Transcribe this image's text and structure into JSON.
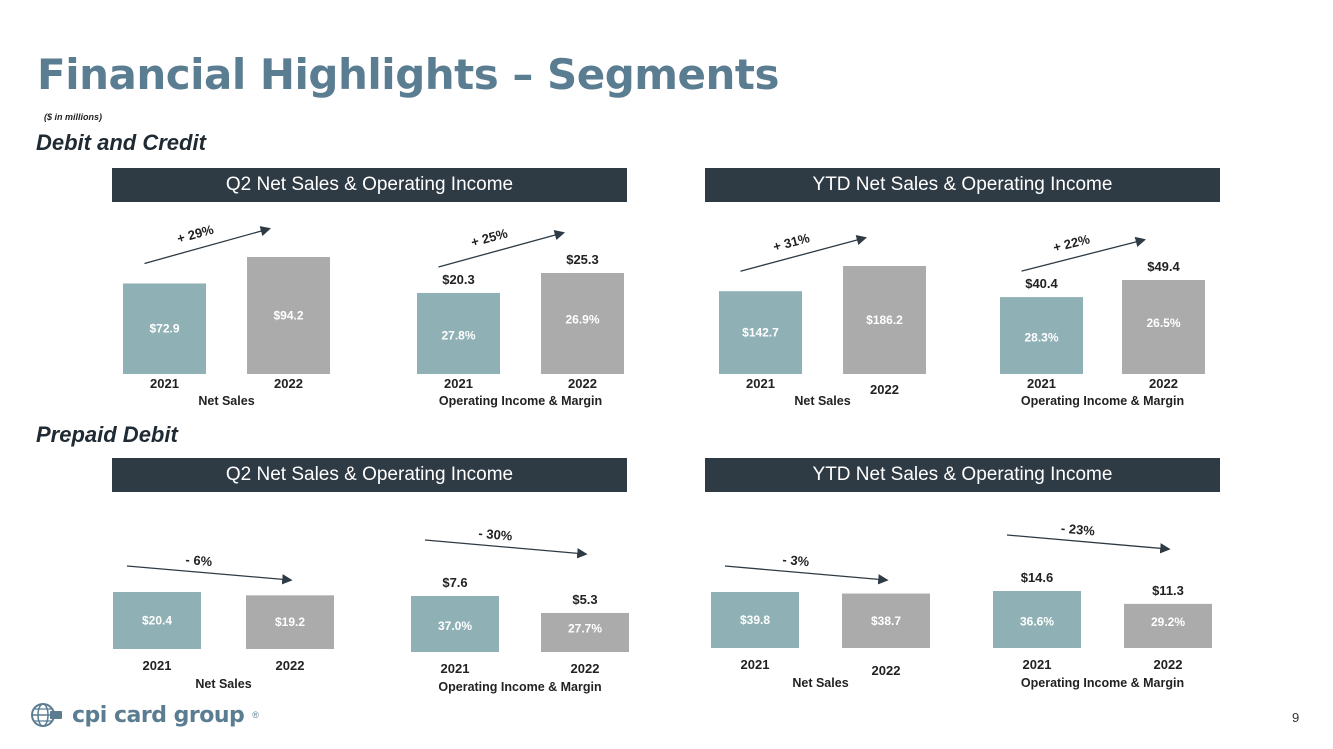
{
  "slide": {
    "title": "Financial Highlights – Segments",
    "units_note": "($ in millions)",
    "page_number": "9",
    "logo_text": "cpi card group",
    "logo_mark": "®"
  },
  "sections": [
    {
      "title": "Debit and Credit",
      "banners": [
        "Q2 Net Sales & Operating Income",
        "YTD Net Sales & Operating Income"
      ]
    },
    {
      "title": "Prepaid Debit",
      "banners": [
        "Q2 Net Sales & Operating Income",
        "YTD Net Sales & Operating Income"
      ]
    }
  ],
  "colors": {
    "bar_2021": "#8fb1b5",
    "bar_2022": "#ababab",
    "banner": "#2e3a44",
    "title": "#5a7d92",
    "inner_label": "#ffffff",
    "outer_label": "#222222"
  },
  "chart_data": [
    {
      "type": "bar",
      "segment": "Debit and Credit",
      "period": "Q2",
      "categories": [
        "2021",
        "2022"
      ],
      "values": [
        72.9,
        94.2
      ],
      "value_labels": [
        "$72.9",
        "$94.2"
      ],
      "xlabel": "Net Sales",
      "change_label": "+ 29%"
    },
    {
      "type": "bar",
      "segment": "Debit and Credit",
      "period": "Q2",
      "categories": [
        "2021",
        "2022"
      ],
      "values": [
        20.3,
        25.3
      ],
      "value_labels": [
        "$20.3",
        "$25.3"
      ],
      "margins": [
        "27.8%",
        "26.9%"
      ],
      "xlabel": "Operating Income & Margin",
      "change_label": "+ 25%"
    },
    {
      "type": "bar",
      "segment": "Debit and Credit",
      "period": "YTD",
      "categories": [
        "2021",
        "2022"
      ],
      "values": [
        142.7,
        186.2
      ],
      "value_labels": [
        "$142.7",
        "$186.2"
      ],
      "xlabel": "Net Sales",
      "change_label": "+ 31%"
    },
    {
      "type": "bar",
      "segment": "Debit and Credit",
      "period": "YTD",
      "categories": [
        "2021",
        "2022"
      ],
      "values": [
        40.4,
        49.4
      ],
      "value_labels": [
        "$40.4",
        "$49.4"
      ],
      "margins": [
        "28.3%",
        "26.5%"
      ],
      "xlabel": "Operating Income & Margin",
      "change_label": "+ 22%"
    },
    {
      "type": "bar",
      "segment": "Prepaid Debit",
      "period": "Q2",
      "categories": [
        "2021",
        "2022"
      ],
      "values": [
        20.4,
        19.2
      ],
      "value_labels": [
        "$20.4",
        "$19.2"
      ],
      "xlabel": "Net Sales",
      "change_label": "- 6%"
    },
    {
      "type": "bar",
      "segment": "Prepaid Debit",
      "period": "Q2",
      "categories": [
        "2021",
        "2022"
      ],
      "values": [
        7.6,
        5.3
      ],
      "value_labels": [
        "$7.6",
        "$5.3"
      ],
      "margins": [
        "37.0%",
        "27.7%"
      ],
      "xlabel": "Operating Income & Margin",
      "change_label": "- 30%"
    },
    {
      "type": "bar",
      "segment": "Prepaid Debit",
      "period": "YTD",
      "categories": [
        "2021",
        "2022"
      ],
      "values": [
        39.8,
        38.7
      ],
      "value_labels": [
        "$39.8",
        "$38.7"
      ],
      "xlabel": "Net Sales",
      "change_label": "- 3%"
    },
    {
      "type": "bar",
      "segment": "Prepaid Debit",
      "period": "YTD",
      "categories": [
        "2021",
        "2022"
      ],
      "values": [
        14.6,
        11.3
      ],
      "value_labels": [
        "$14.6",
        "$11.3"
      ],
      "margins": [
        "36.6%",
        "29.2%"
      ],
      "xlabel": "Operating Income & Margin",
      "change_label": "- 23%"
    }
  ]
}
